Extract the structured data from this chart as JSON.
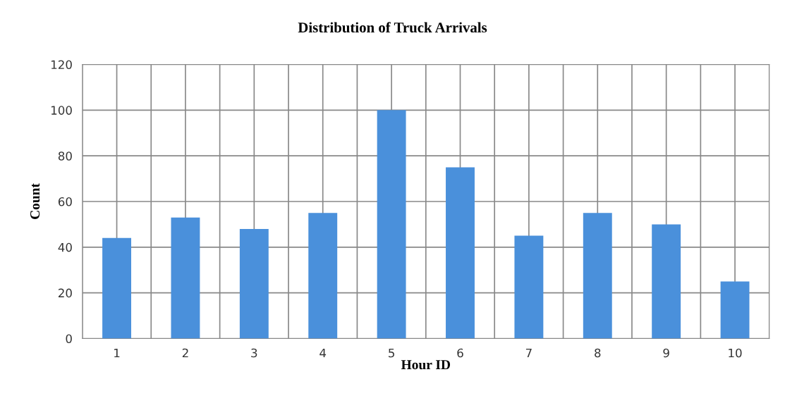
{
  "chart_data": {
    "type": "bar",
    "title": "Distribution of Truck Arrivals",
    "xlabel": "Hour ID",
    "ylabel": "Count",
    "categories": [
      "1",
      "2",
      "3",
      "4",
      "5",
      "6",
      "7",
      "8",
      "9",
      "10"
    ],
    "values": [
      44,
      53,
      48,
      55,
      100,
      75,
      45,
      55,
      50,
      25
    ],
    "color": "#4a90db",
    "ylim": [
      0,
      120
    ],
    "yticks": [
      0,
      20,
      40,
      60,
      80,
      100,
      120
    ],
    "grid": true
  }
}
